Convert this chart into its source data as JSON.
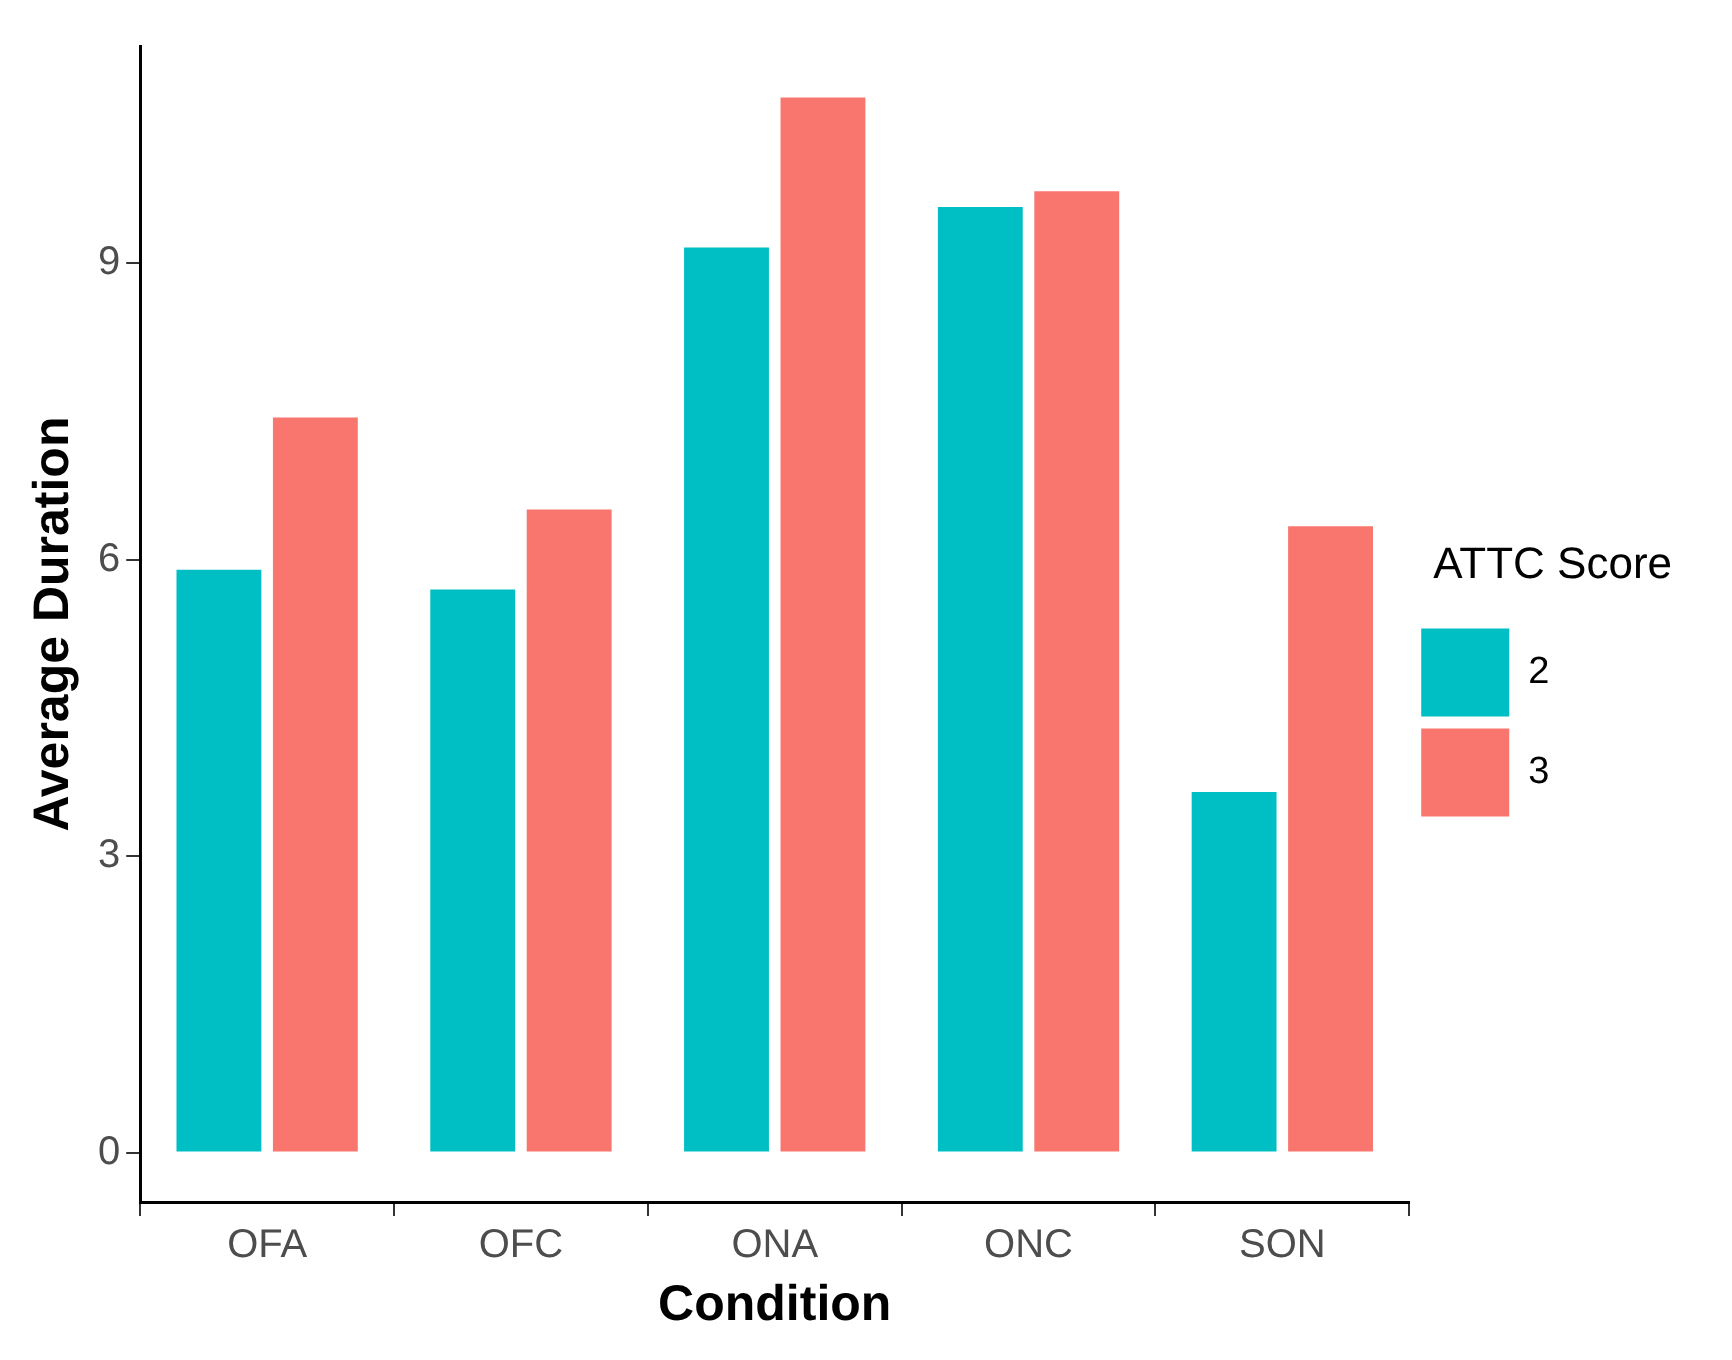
{
  "chart_data": {
    "type": "bar",
    "xlabel": "Condition",
    "ylabel": "Average Duration",
    "legend_title": "ATTC Score",
    "categories": [
      "OFA",
      "OFC",
      "ONA",
      "ONC",
      "SON"
    ],
    "series": [
      {
        "name": "2",
        "color": "#00bfc4",
        "values": [
          5.9,
          5.7,
          9.16,
          9.57,
          3.65
        ]
      },
      {
        "name": "3",
        "color": "#f8766d",
        "values": [
          7.44,
          6.51,
          10.68,
          9.73,
          6.34
        ]
      }
    ],
    "ylim": [
      -0.5,
      11.2
    ],
    "yticks": [
      0,
      3,
      6,
      9
    ],
    "grid": false,
    "legend": "right"
  }
}
